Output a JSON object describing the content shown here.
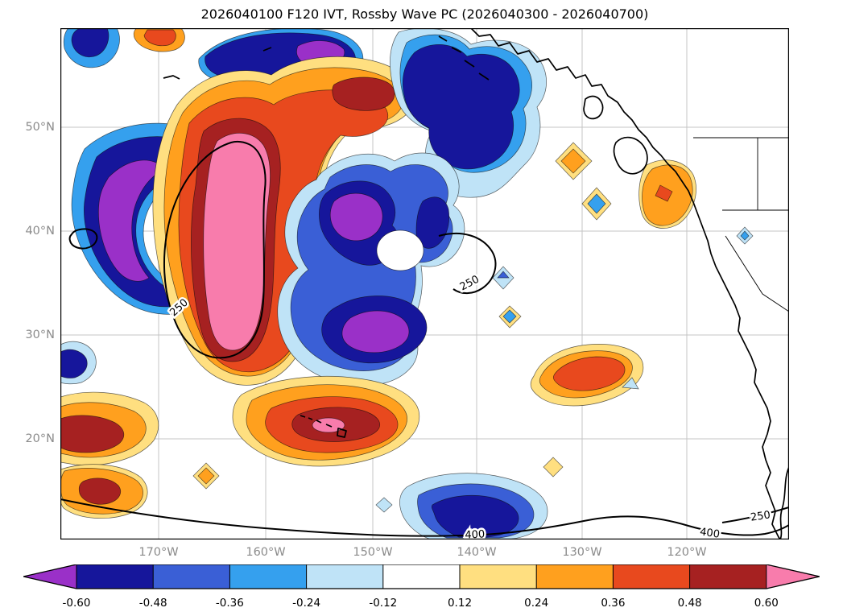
{
  "title": "2026040100 F120 IVT, Rossby Wave PC (2026040300 - 2026040700)",
  "chart_data": {
    "type": "heatmap",
    "subtype": "filled-contour-map",
    "title": "2026040100 F120 IVT, Rossby Wave PC (2026040300 - 2026040700)",
    "init_time": "2026040100",
    "forecast_hour": "F120",
    "valid_window": "2026040300 - 2026040700",
    "shaded_field": "Rossby Wave PC",
    "contoured_field": "IVT",
    "x_ticks": [
      "170°W",
      "160°W",
      "150°W",
      "140°W",
      "130°W",
      "120°W"
    ],
    "y_ticks": [
      "50°N",
      "40°N",
      "30°N",
      "20°N"
    ],
    "grid": true,
    "colorbar": {
      "orientation": "horizontal",
      "levels": [
        -0.6,
        -0.48,
        -0.36,
        -0.24,
        -0.12,
        0.12,
        0.24,
        0.36,
        0.48,
        0.6
      ],
      "tick_labels": [
        "-0.60",
        "-0.48",
        "-0.36",
        "-0.24",
        "-0.12",
        "0.12",
        "0.24",
        "0.36",
        "0.48",
        "0.60"
      ],
      "colors": [
        "#9a30c8",
        "#16169b",
        "#3a5fd6",
        "#35a0ee",
        "#bfe3f7",
        "#ffffff",
        "#ffdf80",
        "#ffa01e",
        "#e8491e",
        "#a62121",
        "#f87cac"
      ],
      "under_color": "#9a30c8",
      "over_color": "#f87cac"
    },
    "colors": {
      "purple": "#9a30c8",
      "navy": "#16169b",
      "blue": "#3a5fd6",
      "sky": "#35a0ee",
      "pale_blue": "#bfe3f7",
      "white": "#ffffff",
      "pale_yellow": "#ffdf80",
      "orange": "#ffa01e",
      "orange_red": "#e8491e",
      "dark_red": "#a62121",
      "pink": "#f87cac"
    },
    "ivt_contours": {
      "labels": {
        "level_250": "250",
        "level_400": "400"
      },
      "labeled_levels": [
        250,
        400
      ]
    },
    "anomaly_centers": [
      {
        "sign": "positive",
        "approx_lon": "162°W",
        "approx_lat": "40°N",
        "peak": "> 0.60"
      },
      {
        "sign": "negative",
        "approx_lon": "176°W",
        "approx_lat": "43°N",
        "peak": "< -0.60"
      },
      {
        "sign": "negative",
        "approx_lon": "152°W",
        "approx_lat": "33°N",
        "peak": "< -0.60"
      },
      {
        "sign": "negative",
        "approx_lon": "144°W",
        "approx_lat": "50°N",
        "peak": "-0.60"
      },
      {
        "sign": "negative",
        "approx_lon": "157°W",
        "approx_lat": "55°N",
        "peak": "-0.60"
      },
      {
        "sign": "positive",
        "approx_lon": "156°W",
        "approx_lat": "21°N",
        "peak": "> 0.60"
      },
      {
        "sign": "positive",
        "approx_lon": "179°W",
        "approx_lat": "22°N",
        "peak": "0.60"
      },
      {
        "sign": "positive",
        "approx_lon": "128°W",
        "approx_lat": "27°N",
        "peak": "0.48"
      },
      {
        "sign": "negative",
        "approx_lon": "138°W",
        "approx_lat": "13°N",
        "peak": "-0.60"
      }
    ]
  }
}
